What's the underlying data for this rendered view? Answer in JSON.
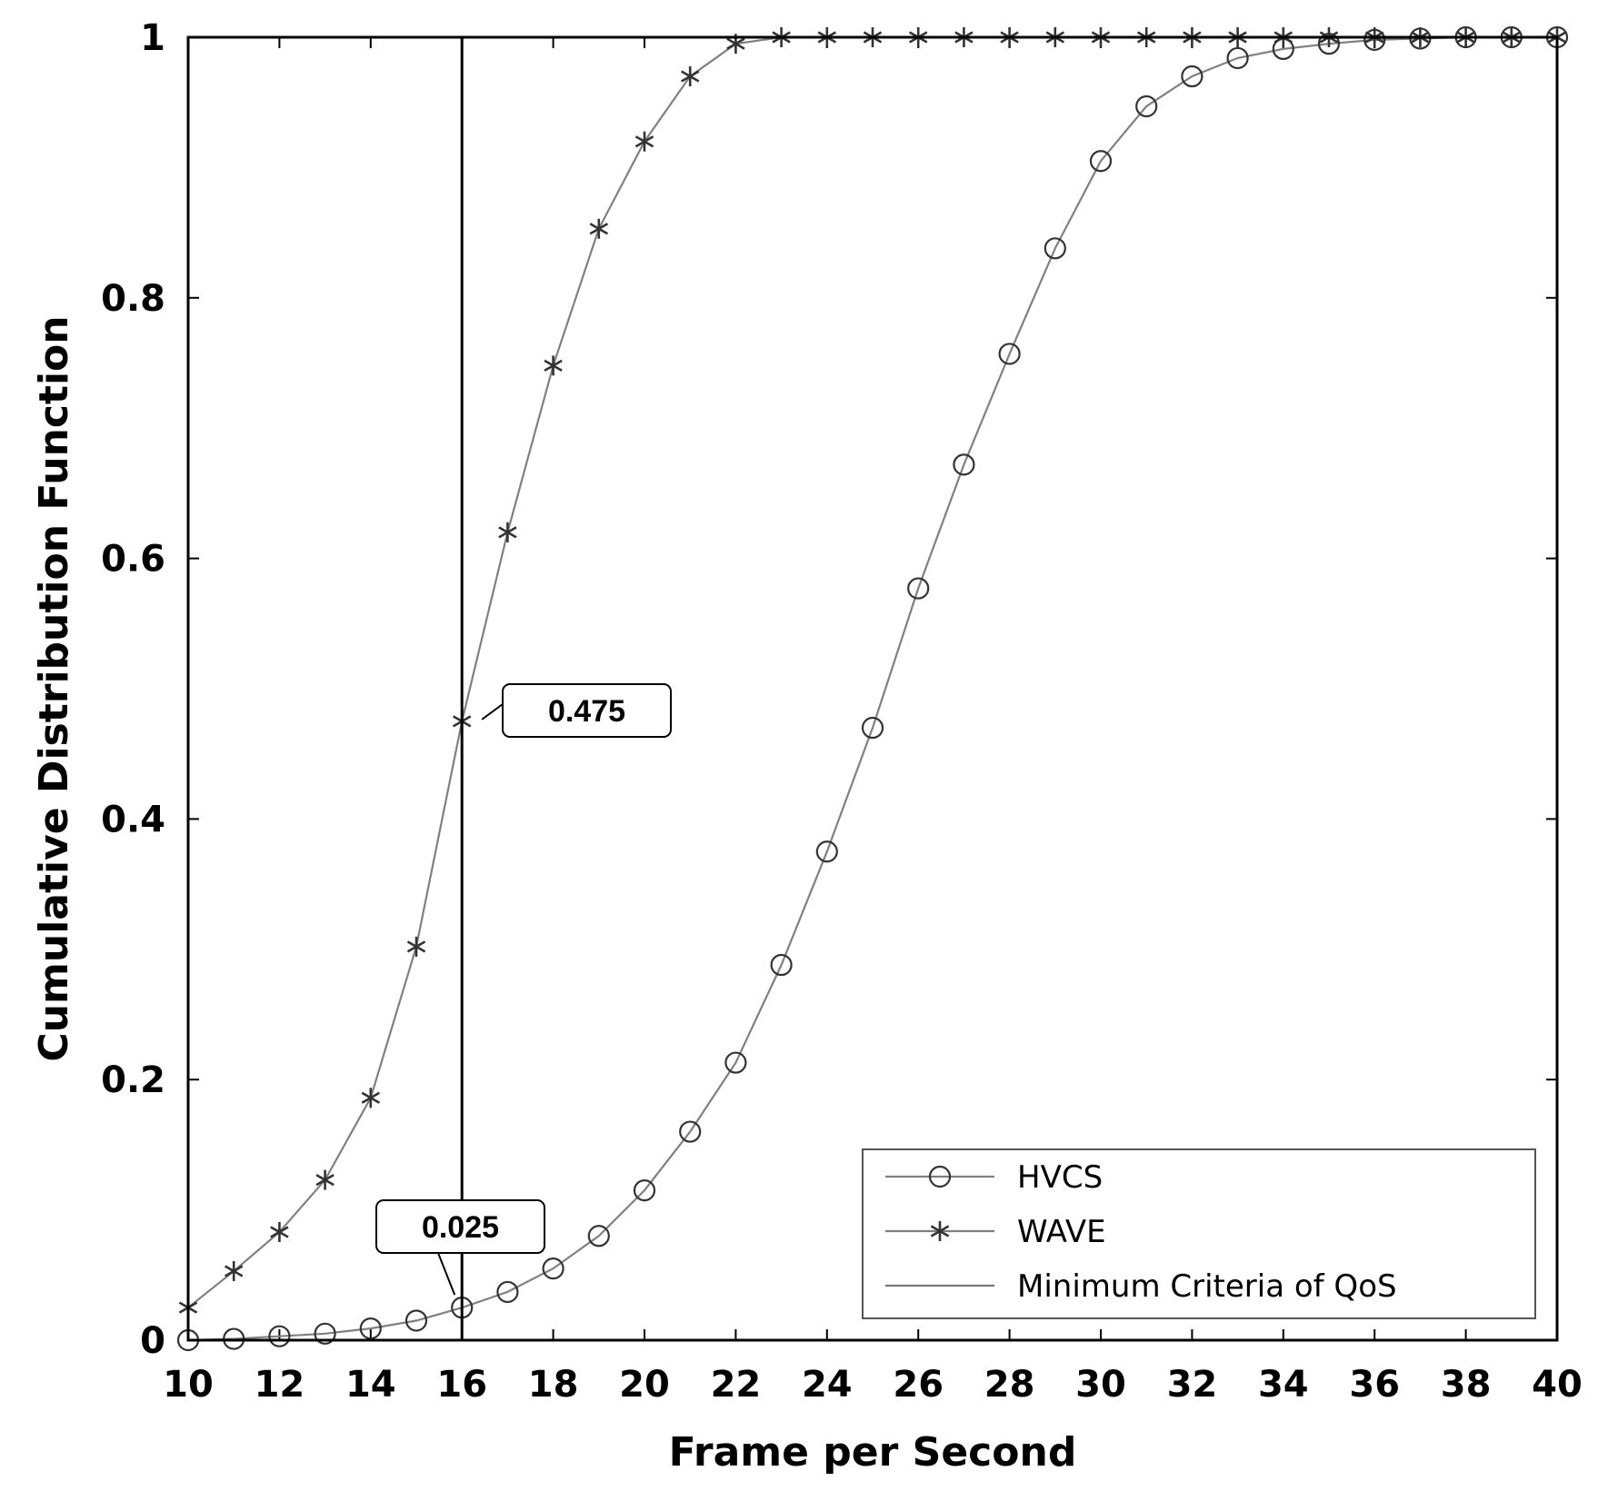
{
  "chart_data": {
    "type": "line",
    "xlabel": "Frame per Second",
    "ylabel": "Cumulative Distribution Function",
    "xlim": [
      10,
      40
    ],
    "ylim": [
      0,
      1
    ],
    "x_ticks": [
      "10",
      "12",
      "14",
      "16",
      "18",
      "20",
      "22",
      "24",
      "26",
      "28",
      "30",
      "32",
      "34",
      "36",
      "38",
      "40"
    ],
    "y_ticks": [
      "0",
      "0.2",
      "0.4",
      "0.6",
      "0.8",
      "1"
    ],
    "grid": false,
    "legend_position": "bottom-right",
    "series": [
      {
        "name": "HVCS",
        "marker": "circle",
        "x": [
          10,
          11,
          12,
          13,
          14,
          15,
          16,
          17,
          18,
          19,
          20,
          21,
          22,
          23,
          24,
          25,
          26,
          27,
          28,
          29,
          30,
          31,
          32,
          33,
          34,
          35,
          36,
          37,
          38,
          39,
          40
        ],
        "y": [
          0.0,
          0.001,
          0.003,
          0.005,
          0.009,
          0.015,
          0.025,
          0.037,
          0.055,
          0.08,
          0.115,
          0.16,
          0.213,
          0.288,
          0.375,
          0.47,
          0.577,
          0.672,
          0.757,
          0.838,
          0.905,
          0.947,
          0.97,
          0.984,
          0.991,
          0.995,
          0.998,
          0.999,
          1.0,
          1.0,
          1.0
        ]
      },
      {
        "name": "WAVE",
        "marker": "asterisk",
        "x": [
          10,
          11,
          12,
          13,
          14,
          15,
          16,
          17,
          18,
          19,
          20,
          21,
          22,
          23,
          24,
          25,
          26,
          27,
          28,
          29,
          30,
          31,
          32,
          33,
          34,
          35,
          36,
          37,
          38,
          39,
          40
        ],
        "y": [
          0.025,
          0.053,
          0.083,
          0.123,
          0.186,
          0.302,
          0.475,
          0.62,
          0.748,
          0.853,
          0.92,
          0.97,
          0.995,
          1.0,
          1.0,
          1.0,
          1.0,
          1.0,
          1.0,
          1.0,
          1.0,
          1.0,
          1.0,
          1.0,
          1.0,
          1.0,
          1.0,
          1.0,
          1.0,
          1.0,
          1.0
        ]
      },
      {
        "name": "Minimum Criteria of QoS",
        "marker": "none",
        "x": [
          16,
          16
        ],
        "y": [
          0,
          1
        ]
      }
    ],
    "annotations": [
      {
        "text": "0.475",
        "x": 16,
        "y": 0.475
      },
      {
        "text": "0.025",
        "x": 16,
        "y": 0.025
      }
    ]
  },
  "colors": {
    "series_line": "#808080",
    "marker": "#333333",
    "qos_line": "#000000",
    "axis": "#000000"
  }
}
